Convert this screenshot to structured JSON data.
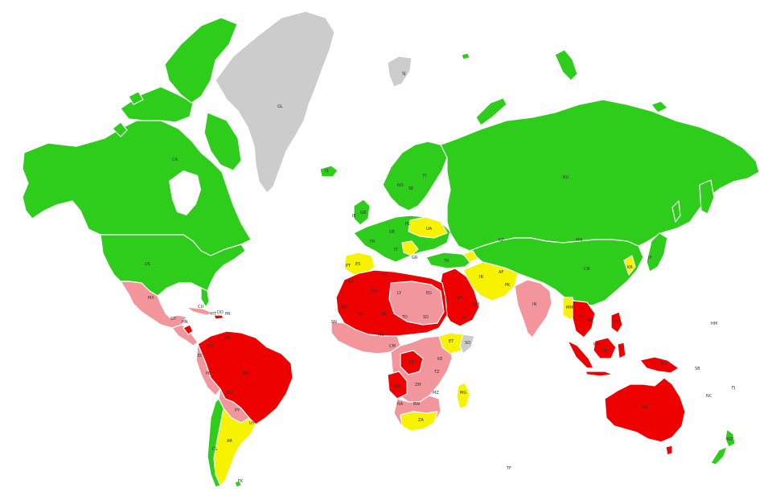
{
  "colors": {
    "green": "#2ecc1b",
    "yellow": "#f6f200",
    "red": "#ef0000",
    "pink": "#f2969b",
    "grey": "#cccccc",
    "background": "#ffffff"
  },
  "labels": {
    "greenland": "GL",
    "svalbard": "SJ",
    "canada": "CA",
    "usa": "US",
    "mexico": "MX",
    "cuba": "CU",
    "guatemala": "GT",
    "honduras": "HN",
    "haiti": "HT",
    "dominican_rep": "DO",
    "puerto_rico": "PR",
    "colombia": "CO",
    "venezuela": "VE",
    "ecuador": "EC",
    "peru": "PE",
    "brazil": "BR",
    "bolivia": "BO",
    "paraguay": "PY",
    "chile": "CL",
    "argentina": "AR",
    "uruguay": "UY",
    "falklands": "FK",
    "iceland": "IS",
    "uk": "GB",
    "ireland": "IE",
    "norway": "NO",
    "sweden": "SE",
    "finland": "FI",
    "poland": "PL",
    "ukraine": "UA",
    "germany": "DE",
    "france": "FR",
    "spain": "ES",
    "portugal": "PT",
    "italy": "IT",
    "greece": "GR",
    "turkey": "TR",
    "russia": "RU",
    "kazakhstan": "KZ",
    "mongolia": "MN",
    "china": "CN",
    "japan": "JP",
    "south_korea": "KR",
    "iran": "IR",
    "afghanistan": "AF",
    "pakistan": "PK",
    "india": "IN",
    "myanmar": "MM",
    "thailand": "TH",
    "vietnam": "VN",
    "philippines": "PH",
    "malaysia": "MY",
    "indonesia": "ID",
    "papua": "PG",
    "australia": "AU",
    "new_zealand": "NZ",
    "new_caledonia": "NC",
    "fiji": "FJ",
    "solomon": "SB",
    "morocco": "MA",
    "algeria": "DZ",
    "libya": "LY",
    "egypt": "EG",
    "mauritania": "MR",
    "mali": "ML",
    "niger": "NE",
    "chad": "TD",
    "sudan": "SD",
    "ethiopia": "ET",
    "somalia": "SO",
    "nigeria": "NG",
    "cameroon": "CM",
    "drc": "CD",
    "kenya": "KE",
    "tanzania": "TZ",
    "angola": "AO",
    "zambia": "ZM",
    "namibia": "NA",
    "botswana": "BW",
    "south_africa": "ZA",
    "mozambique": "MZ",
    "madagascar": "MG",
    "saudi": "SA",
    "yemen": "YE",
    "oman": "OM",
    "tunisia": "TN",
    "senegal": "SN",
    "french_southern": "TF",
    "antarctic_islands": "HM"
  }
}
